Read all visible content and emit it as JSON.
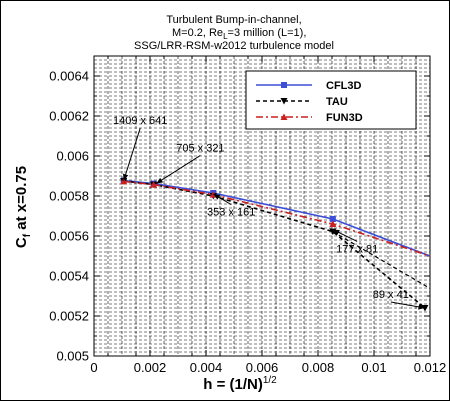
{
  "chart_data": {
    "type": "line",
    "title_lines": [
      "Turbulent Bump-in-channel,",
      "M=0.2, Re",
      "=3 million (L=1),",
      "SSG/LRR-RSM-w2012 turbulence model"
    ],
    "title_sub": "L",
    "xlabel": "h = (1/N)",
    "xlabel_sup": "1/2",
    "ylabel": "C",
    "ylabel_sub": "f",
    "ylabel_rest": " at x=0.75",
    "xlim": [
      0,
      0.012
    ],
    "ylim": [
      0.005,
      0.0065
    ],
    "x_ticks": [
      "0",
      "0.002",
      "0.004",
      "0.006",
      "0.008",
      "0.01",
      "0.012"
    ],
    "y_ticks": [
      "0.005",
      "0.0052",
      "0.0054",
      "0.0056",
      "0.0058",
      "0.006",
      "0.0062",
      "0.0064"
    ],
    "grid": true,
    "legend_position": "top-right",
    "series": [
      {
        "name": "CFL3D",
        "color": "#3b4fd9",
        "style": "solid",
        "marker": "square",
        "x": [
          0.00106,
          0.00213,
          0.00426,
          0.00853,
          0.012
        ],
        "y": [
          0.005877,
          0.005862,
          0.005815,
          0.005685,
          0.0055
        ]
      },
      {
        "name": "TAU",
        "color": "#000000",
        "style": "dashed",
        "marker": "triangle-down",
        "x": [
          0.00106,
          0.00213,
          0.00426,
          0.00853,
          0.01182
        ],
        "y": [
          0.005875,
          0.005857,
          0.0058,
          0.005622,
          0.00524
        ]
      },
      {
        "name": "FUN3D",
        "color": "#cc1f1f",
        "style": "dashdot",
        "marker": "triangle-up",
        "x": [
          0.00106,
          0.00213,
          0.00426,
          0.00853,
          0.012
        ],
        "y": [
          0.005873,
          0.005857,
          0.005807,
          0.00566,
          0.0055
        ]
      }
    ],
    "extra_lines": [
      {
        "color": "#000000",
        "style": "dashed",
        "x": [
          0.00853,
          0.012
        ],
        "y": [
          0.005622,
          0.005338
        ]
      }
    ],
    "annotations": [
      {
        "text": "1409 x 641",
        "label_x": 0.00165,
        "label_y": 0.006159,
        "target_x": 0.00106,
        "target_y": 0.005877
      },
      {
        "text": "705 x 321",
        "label_x": 0.0038,
        "label_y": 0.006023,
        "target_x": 0.00222,
        "target_y": 0.005862
      },
      {
        "text": "353 x 161",
        "label_x": 0.0049,
        "label_y": 0.005702,
        "target_x": 0.00426,
        "target_y": 0.00581
      },
      {
        "text": "177 x 81",
        "label_x": 0.0094,
        "label_y": 0.005518,
        "target_x": 0.00853,
        "target_y": 0.005632
      },
      {
        "text": "89 x 41",
        "label_x": 0.0106,
        "label_y": 0.00529,
        "target_x": 0.01182,
        "target_y": 0.00524
      }
    ]
  }
}
